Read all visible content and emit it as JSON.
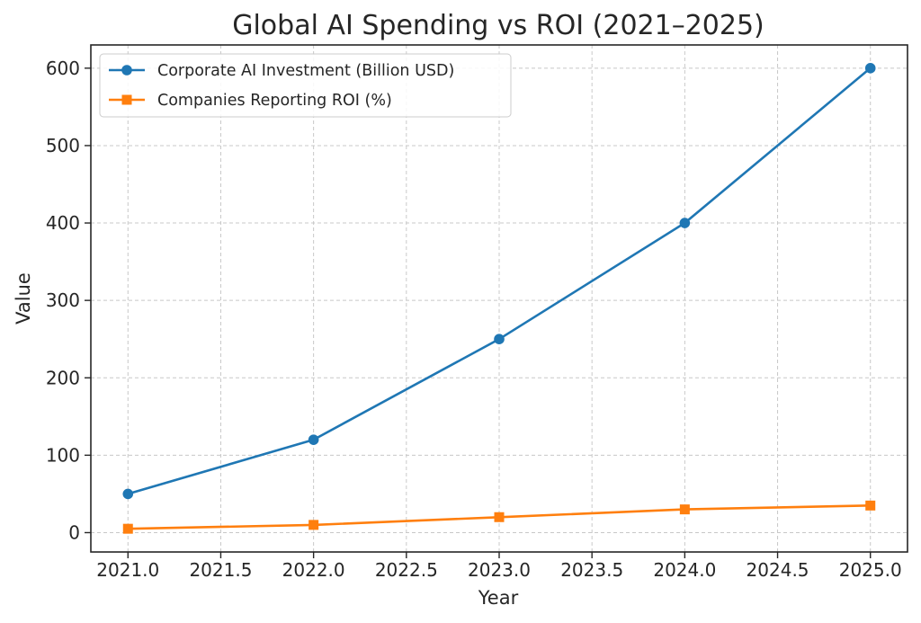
{
  "chart_data": {
    "type": "line",
    "title": "Global AI Spending vs ROI (2021–2025)",
    "xlabel": "Year",
    "ylabel": "Value",
    "x": [
      2021,
      2022,
      2023,
      2024,
      2025
    ],
    "xlim": [
      2020.8,
      2025.2
    ],
    "ylim": [
      -25,
      630
    ],
    "xticks": [
      "2021.0",
      "2021.5",
      "2022.0",
      "2022.5",
      "2023.0",
      "2023.5",
      "2024.0",
      "2024.5",
      "2025.0"
    ],
    "yticks": [
      "0",
      "100",
      "200",
      "300",
      "400",
      "500",
      "600"
    ],
    "grid": true,
    "legend_position": "top-left",
    "series": [
      {
        "name": "Corporate AI Investment (Billion USD)",
        "values": [
          50,
          120,
          250,
          400,
          600
        ],
        "color": "#1f77b4",
        "marker": "circle"
      },
      {
        "name": "Companies Reporting ROI (%)",
        "values": [
          5,
          10,
          20,
          30,
          35
        ],
        "color": "#ff7f0e",
        "marker": "square"
      }
    ]
  }
}
